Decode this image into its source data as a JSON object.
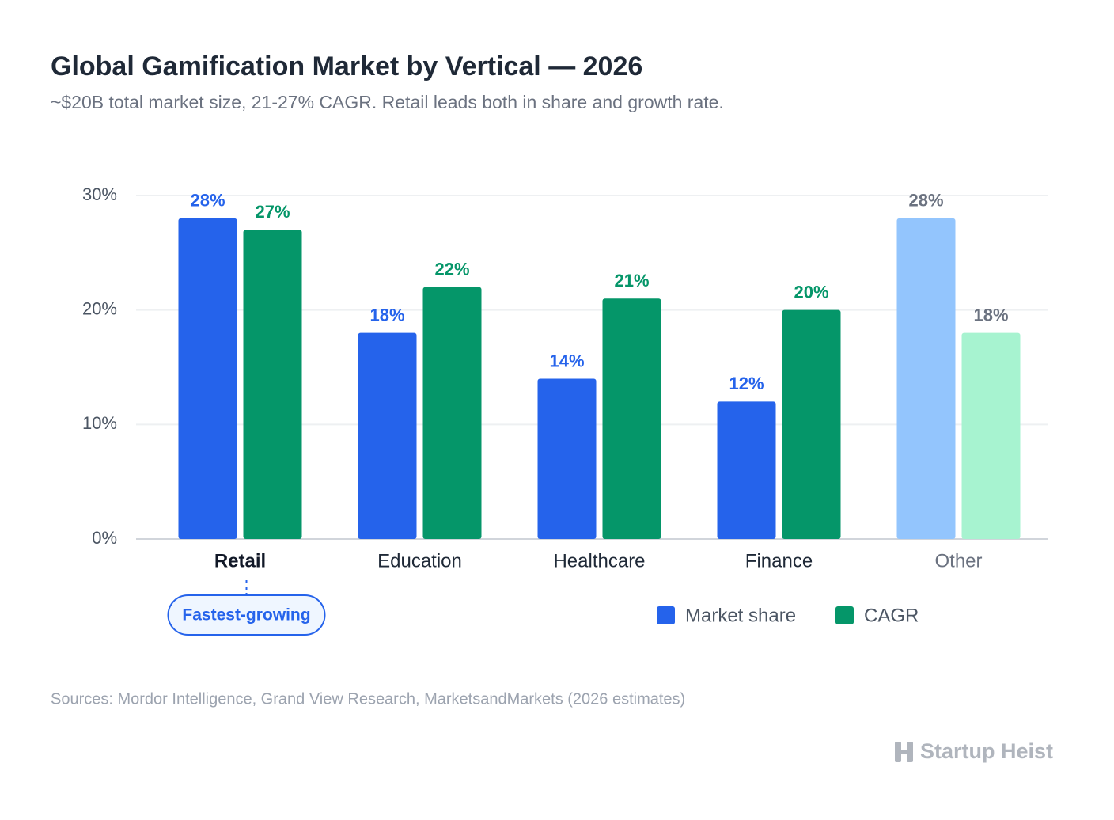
{
  "chart_data": {
    "type": "bar",
    "title": "Global Gamification Market by Vertical — 2026",
    "subtitle": "~$20B total market size, 21-27% CAGR. Retail leads both in share and growth rate.",
    "categories": [
      "Retail",
      "Education",
      "Healthcare",
      "Finance",
      "Other"
    ],
    "category_label_colors": [
      "#111827",
      "#1f2937",
      "#1f2937",
      "#1f2937",
      "#6b7280"
    ],
    "series": [
      {
        "name": "Market share",
        "color": "#2563eb",
        "colors": [
          "#2563eb",
          "#2563eb",
          "#2563eb",
          "#2563eb",
          "#93c5fd"
        ],
        "label_colors": [
          "#2563eb",
          "#2563eb",
          "#2563eb",
          "#2563eb",
          "#6b7280"
        ],
        "values": [
          28,
          18,
          14,
          12,
          28
        ],
        "value_labels": [
          "28%",
          "18%",
          "14%",
          "12%",
          "28%"
        ]
      },
      {
        "name": "CAGR",
        "color": "#059669",
        "colors": [
          "#059669",
          "#059669",
          "#059669",
          "#059669",
          "#a7f3d0"
        ],
        "label_colors": [
          "#059669",
          "#059669",
          "#059669",
          "#059669",
          "#6b7280"
        ],
        "values": [
          27,
          22,
          21,
          20,
          18
        ],
        "value_labels": [
          "27%",
          "22%",
          "21%",
          "20%",
          "18%"
        ]
      }
    ],
    "ylim": [
      0,
      30
    ],
    "yticks": [
      {
        "value": 0,
        "label": "0%"
      },
      {
        "value": 10,
        "label": "10%"
      },
      {
        "value": 20,
        "label": "20%"
      },
      {
        "value": 30,
        "label": "30%"
      }
    ],
    "grid": true,
    "annotation": {
      "text": "Fastest-growing",
      "category_index": 0
    },
    "source": "Sources: Mordor Intelligence, Grand View Research, MarketsandMarkets (2026 estimates)",
    "brand": "Startup Heist"
  }
}
